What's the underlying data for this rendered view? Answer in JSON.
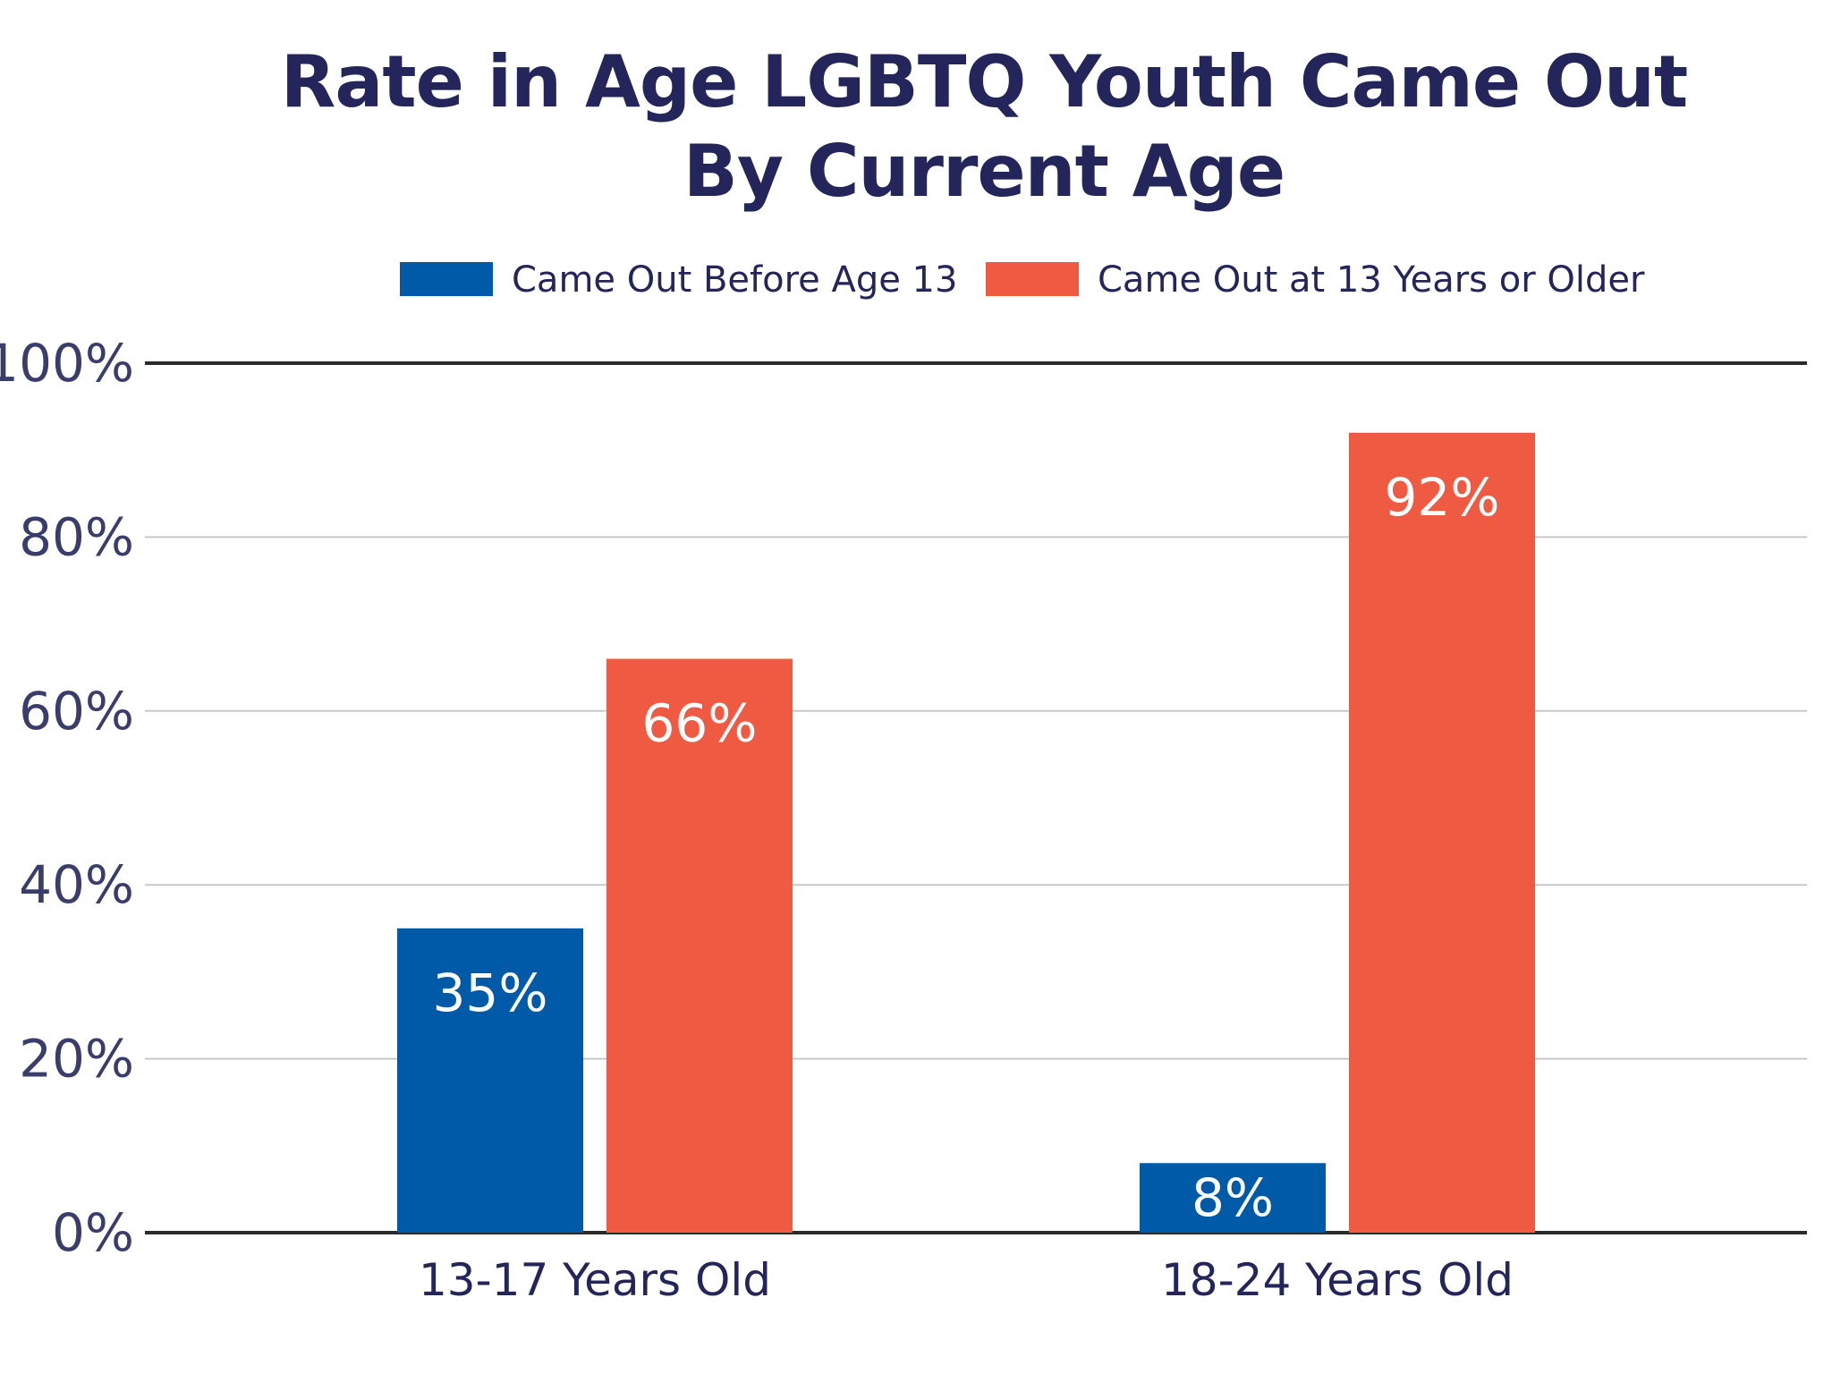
{
  "chart_data": {
    "type": "bar",
    "title_lines": [
      "Rate in Age LGBTQ Youth Came Out",
      "By Current Age"
    ],
    "categories": [
      "13-17 Years Old",
      "18-24 Years Old"
    ],
    "series": [
      {
        "name": "Came Out Before Age 13",
        "color": "#005aa8",
        "values": [
          35,
          8
        ],
        "labels": [
          "35%",
          "8%"
        ]
      },
      {
        "name": "Came Out at 13 Years or Older",
        "color": "#ef5a42",
        "values": [
          66,
          92
        ],
        "labels": [
          "66%",
          "92%"
        ]
      }
    ],
    "ylim": [
      0,
      100
    ],
    "yticks": [
      0,
      20,
      40,
      60,
      80,
      100
    ],
    "ytick_labels": [
      "0%",
      "20%",
      "40%",
      "60%",
      "80%",
      "100%"
    ],
    "xlabel": "",
    "ylabel": "",
    "grid": true,
    "legend_position": "top"
  }
}
